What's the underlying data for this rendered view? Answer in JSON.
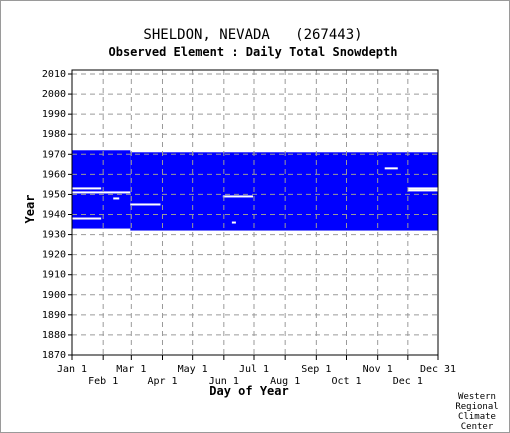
{
  "chart_data": {
    "type": "heatmap",
    "title": "SHELDON, NEVADA   (267443)",
    "subtitle": "Observed Element : Daily Total Snowdepth",
    "xlabel": "Day of Year",
    "ylabel": "Year",
    "x_range_day_of_year": [
      1,
      365
    ],
    "ylim": [
      1870,
      2012
    ],
    "y_ticks": [
      1870,
      1880,
      1890,
      1900,
      1910,
      1920,
      1930,
      1940,
      1950,
      1960,
      1970,
      1980,
      1990,
      2000,
      2010
    ],
    "x_ticks_top": [
      {
        "label": "Jan 1",
        "day": 1
      },
      {
        "label": "Mar 1",
        "day": 60
      },
      {
        "label": "May 1",
        "day": 121
      },
      {
        "label": "Jul 1",
        "day": 182
      },
      {
        "label": "Sep 1",
        "day": 244
      },
      {
        "label": "Nov 1",
        "day": 305
      },
      {
        "label": "Dec 31",
        "day": 365
      }
    ],
    "x_ticks_bottom": [
      {
        "label": "Feb 1",
        "day": 32
      },
      {
        "label": "Apr 1",
        "day": 91
      },
      {
        "label": "Jun 1",
        "day": 152
      },
      {
        "label": "Aug 1",
        "day": 213
      },
      {
        "label": "Oct 1",
        "day": 274
      },
      {
        "label": "Dec 1",
        "day": 335
      }
    ],
    "grid": true,
    "data_color": "#0000ff",
    "coverage_blocks": [
      {
        "day_start": 1,
        "day_end": 59,
        "year_start": 1933,
        "year_end": 1972
      },
      {
        "day_start": 59,
        "day_end": 365,
        "year_start": 1932,
        "year_end": 1971
      }
    ],
    "missing_segments": [
      {
        "year": 1953,
        "day_start": 1,
        "day_end": 30
      },
      {
        "year": 1951,
        "day_start": 1,
        "day_end": 59
      },
      {
        "year": 1948,
        "day_start": 42,
        "day_end": 48
      },
      {
        "year": 1945,
        "day_start": 59,
        "day_end": 89
      },
      {
        "year": 1949,
        "day_start": 151,
        "day_end": 181
      },
      {
        "year": 1938,
        "day_start": 1,
        "day_end": 30
      },
      {
        "year": 1936,
        "day_start": 160,
        "day_end": 164
      },
      {
        "year": 1952,
        "day_start": 335,
        "day_end": 365
      },
      {
        "year": 1953,
        "day_start": 335,
        "day_end": 365
      },
      {
        "year": 1963,
        "day_start": 312,
        "day_end": 325
      }
    ],
    "credit": [
      "Western",
      "Regional",
      "Climate",
      "Center"
    ]
  }
}
